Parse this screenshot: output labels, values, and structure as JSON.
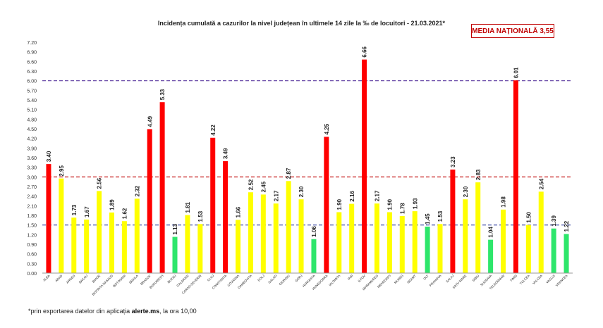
{
  "chart_data": {
    "type": "bar",
    "title": "Incidența cumulată a cazurilor la nivel județean în ultimele 14 zile la ‰ de locuitori - 21.03.2021*",
    "national_label": "MEDIA NAȚIONALĂ 3,55",
    "ylim": [
      0,
      7.2
    ],
    "y_ticks": [
      "0.00",
      "0.30",
      "0.60",
      "0.90",
      "1.20",
      "1.50",
      "1.80",
      "2.10",
      "2.40",
      "2.70",
      "3.00",
      "3.30",
      "3.60",
      "3.90",
      "4.20",
      "4.50",
      "4.80",
      "5.10",
      "5.40",
      "5.70",
      "6.00",
      "6.30",
      "6.60",
      "6.90",
      "7.20"
    ],
    "thresholds": [
      1.5,
      3.0,
      6.0
    ],
    "categories": [
      "ALBA",
      "ARAD",
      "ARGES",
      "BACAU",
      "BIHOR",
      "BISTRITA NASAUD",
      "BOTOSANI",
      "BRAILA",
      "BRASOV",
      "BUCURESTI",
      "BUZAU",
      "CALARASI",
      "CARAS-SEVERIN",
      "CLUJ",
      "CONSTANTA",
      "COVASNA",
      "DAMBOVITA",
      "DOLJ",
      "GALATI",
      "GIURGIU",
      "GORJ",
      "HARGHITA",
      "HUNEDOARA",
      "IALOMITA",
      "IASI",
      "ILFOV",
      "MARAMURES",
      "MEHEDINTI",
      "MURES",
      "NEAMT",
      "OLT",
      "PRAHOVA",
      "SALAJ",
      "SATU MARE",
      "SIBIU",
      "SUCEAVA",
      "TELEORMAN",
      "TIMIS",
      "TULCEA",
      "VALCEA",
      "VASLUI",
      "VRANCEA"
    ],
    "values": [
      3.4,
      2.95,
      1.73,
      1.67,
      2.56,
      1.89,
      1.62,
      2.32,
      4.49,
      5.33,
      1.13,
      1.81,
      1.53,
      4.22,
      3.49,
      1.66,
      2.52,
      2.45,
      2.17,
      2.87,
      2.3,
      1.06,
      4.25,
      1.9,
      2.16,
      6.66,
      2.17,
      1.9,
      1.78,
      1.93,
      1.45,
      1.53,
      3.23,
      2.3,
      2.83,
      1.04,
      1.98,
      6.01,
      1.5,
      2.54,
      1.39,
      1.22
    ],
    "value_labels": [
      "3.40",
      "2.95",
      "1.73",
      "1.67",
      "2.56",
      "1.89",
      "1.62",
      "2.32",
      "4.49",
      "5.33",
      "1.13",
      "1.81",
      "1.53",
      "4.22",
      "3.49",
      "1.66",
      "2.52",
      "2.45",
      "2.17",
      "2.87",
      "2.30",
      "1.06",
      "4.25",
      "1.90",
      "2.16",
      "6.66",
      "2.17",
      "1.90",
      "1.78",
      "1.93",
      "1.45",
      "1.53",
      "3.23",
      "2.30",
      "2.83",
      "1.04",
      "1.98",
      "6.01",
      "1.50",
      "2.54",
      "1.39",
      "1.22"
    ],
    "colors": {
      "red": "#ff0000",
      "yellow": "#ffff00",
      "green": "#2ee66b",
      "line_red": "#c00000",
      "line_blue": "#2f3f9f",
      "line_purple": "#5b3aa0"
    },
    "grid": false,
    "legend": "none"
  },
  "footnote": {
    "prefix": "*prin exportarea datelor din aplicația ",
    "bold": "alerte.ms",
    "suffix": ", la ora 10,00"
  }
}
